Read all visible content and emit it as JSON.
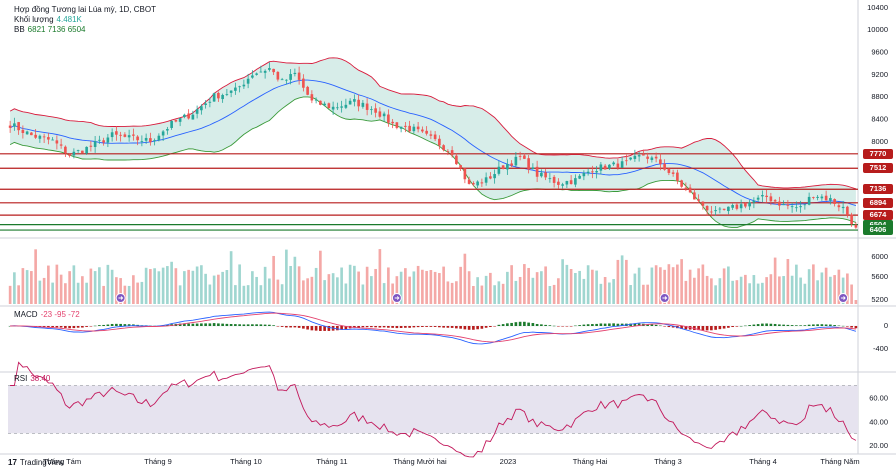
{
  "legend": {
    "title": "Hợp đồng Tương lai Lúa mỳ, 1D, CBOT",
    "volume_label": "Khối lượng",
    "volume_value": "4.481K",
    "bb_label": "BB",
    "bb_values": "6821 7136 6504",
    "macd_label": "MACD",
    "macd_values": "-23 -95 -72",
    "rsi_label": "RSI",
    "rsi_value": "38.40"
  },
  "colors": {
    "up": "#26a69a",
    "down": "#ef5350",
    "vol_up": "#9fd6d0",
    "vol_down": "#f4a8a6",
    "bb_upper": "#d81b3c",
    "bb_lower": "#3a9a3a",
    "bb_basis": "#2962ff",
    "bb_fill": "#d7ede9",
    "macd_line": "#2962ff",
    "signal_line": "#e4426e",
    "rsi_line": "#c2185b",
    "rsi_band": "#e6e3ef",
    "level_red": "#b71c1c",
    "level_green": "#1b7a2c"
  },
  "footer": {
    "logo": "TradingView"
  },
  "chart_data": {
    "type": "candlestick",
    "symbol": "Hợp đồng Tương lai Lúa mỳ, 1D, CBOT",
    "months": [
      "Tháng Tám",
      "Tháng 9",
      "Tháng 10",
      "Tháng 11",
      "Tháng Mười hai",
      "2023",
      "Tháng Hai",
      "Tháng 3",
      "Tháng 4",
      "Tháng Năm"
    ],
    "price_axis": {
      "ticks": [
        10400,
        10000,
        9600,
        9200,
        8800,
        8400,
        8000
      ],
      "range": [
        6300,
        10450
      ]
    },
    "levels": [
      {
        "value": 7770,
        "label": "7770",
        "color": "red"
      },
      {
        "value": 7512,
        "label": "7512",
        "color": "red"
      },
      {
        "value": 7136,
        "label": "7136",
        "color": "red"
      },
      {
        "value": 6894,
        "label": "6894",
        "color": "red"
      },
      {
        "value": 6674,
        "label": "6674",
        "color": "red"
      },
      {
        "value": 6504,
        "label": "6504",
        "color": "green"
      },
      {
        "value": 6406,
        "label": "6406",
        "color": "green"
      }
    ],
    "close_anchors": [
      [
        0,
        8300
      ],
      [
        5,
        8100
      ],
      [
        10,
        8000
      ],
      [
        14,
        7750
      ],
      [
        19,
        7900
      ],
      [
        24,
        8100
      ],
      [
        28,
        8050
      ],
      [
        33,
        8000
      ],
      [
        38,
        8300
      ],
      [
        43,
        8500
      ],
      [
        48,
        8800
      ],
      [
        53,
        8900
      ],
      [
        57,
        9200
      ],
      [
        61,
        9300
      ],
      [
        64,
        9050
      ],
      [
        67,
        9200
      ],
      [
        71,
        8700
      ],
      [
        76,
        8600
      ],
      [
        81,
        8700
      ],
      [
        86,
        8550
      ],
      [
        90,
        8300
      ],
      [
        95,
        8200
      ],
      [
        100,
        8000
      ],
      [
        104,
        7800
      ],
      [
        108,
        7200
      ],
      [
        112,
        7300
      ],
      [
        116,
        7550
      ],
      [
        120,
        7700
      ],
      [
        124,
        7400
      ],
      [
        129,
        7250
      ],
      [
        133,
        7300
      ],
      [
        137,
        7500
      ],
      [
        141,
        7550
      ],
      [
        145,
        7600
      ],
      [
        149,
        7750
      ],
      [
        153,
        7600
      ],
      [
        158,
        7200
      ],
      [
        162,
        6900
      ],
      [
        166,
        6700
      ],
      [
        170,
        6800
      ],
      [
        174,
        6900
      ],
      [
        178,
        7000
      ],
      [
        182,
        6850
      ],
      [
        186,
        6800
      ],
      [
        189,
        7050
      ],
      [
        193,
        6950
      ],
      [
        196,
        6800
      ],
      [
        199,
        6450
      ]
    ],
    "volume_axis": {
      "ticks": [
        6000,
        5600,
        5200
      ]
    },
    "macd_axis": {
      "ticks": [
        0,
        -400
      ]
    },
    "rsi_axis": {
      "ticks": [
        60,
        40,
        20
      ],
      "upper_band": 70,
      "lower_band": 30
    }
  }
}
